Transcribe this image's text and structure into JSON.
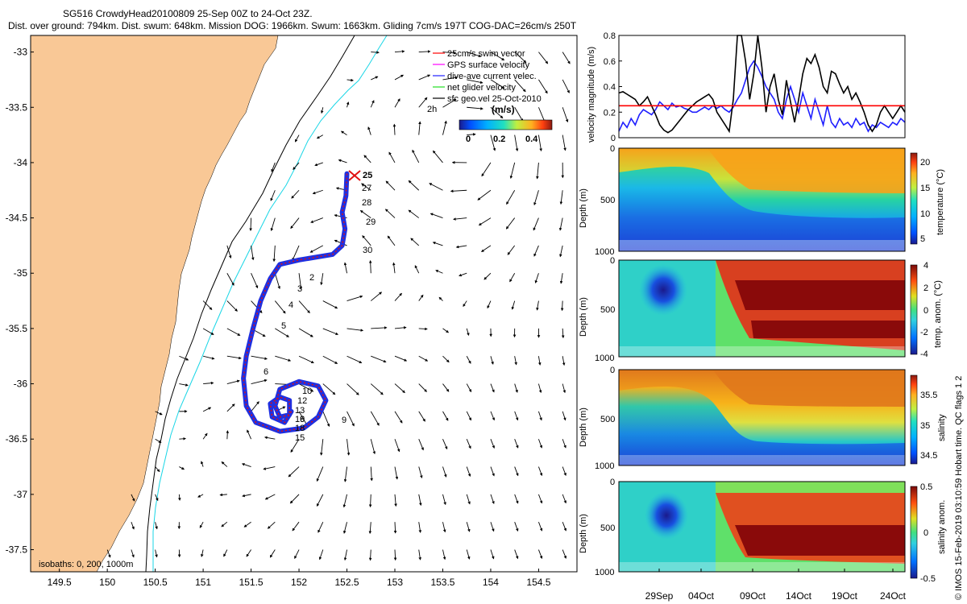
{
  "header": {
    "title_line1": "SG516 CrowdyHead20100809 25-Sep 00Z to 24-Oct 23Z.",
    "title_line2": "Dist. over ground: 794km. Dist. swum: 648km. Mission DOG: 1966km. Swum: 1663km. Gliding 7cm/s 197T COG-DAC=26cm/s 250T"
  },
  "credit": "© IMOS 15-Feb-2019 03:10:59 Hobart time. QC flags 1  2",
  "colors": {
    "land": "#f9c896",
    "track_blue": "#1f2fe0",
    "track_red": "#e01010",
    "isobath_cyan": "#19d6e6",
    "swim_red": "#ff0000",
    "gps_magenta": "#ff00ff",
    "dac_blue": "#2020ff",
    "net_green": "#22dd22",
    "sfc_black": "#000000"
  },
  "map": {
    "legend": {
      "items": [
        "25cm/s swim vector",
        "GPS surface velocity",
        "dive-ave current velec.",
        "net glider velocity",
        "sfc geo.vel 25-Oct-2010"
      ],
      "extra_label": "2h",
      "colorbar_title": "(m/s)",
      "colorbar_ticks": [
        "0",
        "0.2",
        "0.4"
      ]
    },
    "isobath_note": "isobaths: 0,  200, 1000m",
    "day_labels": [
      "25",
      "27",
      "28",
      "29",
      "30",
      "2",
      "3",
      "4",
      "5",
      "6",
      "9",
      "10",
      "12",
      "13",
      "15",
      "18",
      "19",
      "6"
    ]
  },
  "chart_data": [
    {
      "type": "map",
      "name": "glider-track-map",
      "xticks": [
        "149.5",
        "150",
        "150.5",
        "151",
        "151.5",
        "152",
        "152.5",
        "153",
        "153.5",
        "154",
        "154.5"
      ],
      "yticks": [
        "-33",
        "-33.5",
        "-34",
        "-34.5",
        "-35",
        "-35.5",
        "-36",
        "-36.5",
        "-37",
        "-37.5"
      ],
      "xlim": [
        149.2,
        154.9
      ],
      "ylim": [
        -37.7,
        -32.85
      ],
      "track": [
        [
          152.5,
          -34.1
        ],
        [
          152.49,
          -34.3
        ],
        [
          152.45,
          -34.45
        ],
        [
          152.48,
          -34.6
        ],
        [
          152.45,
          -34.75
        ],
        [
          152.35,
          -34.83
        ],
        [
          152.0,
          -34.88
        ],
        [
          151.8,
          -34.92
        ],
        [
          151.7,
          -35.05
        ],
        [
          151.6,
          -35.25
        ],
        [
          151.52,
          -35.5
        ],
        [
          151.45,
          -35.75
        ],
        [
          151.42,
          -35.95
        ],
        [
          151.45,
          -36.2
        ],
        [
          151.55,
          -36.35
        ],
        [
          151.8,
          -36.43
        ],
        [
          152.05,
          -36.4
        ],
        [
          152.2,
          -36.3
        ],
        [
          152.28,
          -36.15
        ],
        [
          152.2,
          -36.02
        ],
        [
          152.0,
          -35.98
        ],
        [
          151.8,
          -36.05
        ],
        [
          151.75,
          -36.2
        ],
        [
          151.8,
          -36.3
        ],
        [
          151.9,
          -36.28
        ],
        [
          151.9,
          -36.15
        ],
        [
          151.8,
          -36.12
        ],
        [
          151.7,
          -36.18
        ],
        [
          151.72,
          -36.3
        ],
        [
          151.85,
          -36.35
        ],
        [
          151.92,
          -36.25
        ]
      ]
    },
    {
      "type": "line",
      "name": "velocity-magnitude",
      "ylabel": "velocity magnitude (m/s)",
      "ylim": [
        0,
        0.8
      ],
      "yticks": [
        "0",
        "0.2",
        "0.4",
        "0.6",
        "0.8"
      ],
      "series": [
        {
          "color": "#22dd22",
          "values": [
            0.1,
            0.12,
            0.2,
            0.15,
            0.22,
            0.12,
            0.18,
            0.2,
            0.15,
            0.3,
            0.38,
            0.25,
            0.45,
            0.3,
            0.4,
            0.5,
            0.35,
            0.45,
            0.3,
            0.25,
            0.15,
            0.2,
            0.28,
            0.25,
            0.35,
            0.22,
            0.3,
            0.25,
            0.2,
            0.32,
            0.4,
            0.5,
            0.62,
            0.55,
            0.7,
            0.45,
            0.55,
            0.35,
            0.6,
            0.4,
            0.68,
            0.55,
            0.45,
            0.35,
            0.55,
            0.45,
            0.3,
            0.48,
            0.35,
            0.25,
            0.45,
            0.3,
            0.38,
            0.2,
            0.35,
            0.18,
            0.3,
            0.15,
            0.25,
            0.2,
            0.3,
            0.12,
            0.22,
            0.1,
            0.2,
            0.08,
            0.18,
            0.12,
            0.2,
            0.15,
            0.1
          ]
        },
        {
          "color": "#2020ff",
          "values": [
            0.05,
            0.12,
            0.08,
            0.15,
            0.1,
            0.18,
            0.22,
            0.2,
            0.18,
            0.22,
            0.28,
            0.25,
            0.22,
            0.27,
            0.24,
            0.25,
            0.23,
            0.22,
            0.2,
            0.2,
            0.22,
            0.24,
            0.22,
            0.25,
            0.23,
            0.25,
            0.22,
            0.2,
            0.24,
            0.3,
            0.35,
            0.45,
            0.55,
            0.6,
            0.55,
            0.48,
            0.4,
            0.35,
            0.3,
            0.2,
            0.15,
            0.3,
            0.4,
            0.3,
            0.2,
            0.35,
            0.25,
            0.15,
            0.3,
            0.2,
            0.1,
            0.25,
            0.12,
            0.08,
            0.15,
            0.1,
            0.12,
            0.08,
            0.15,
            0.1,
            0.12,
            0.05,
            0.1,
            0.08,
            0.12,
            0.1,
            0.08,
            0.12,
            0.1,
            0.15,
            0.12
          ]
        },
        {
          "color": "#000000",
          "values": [
            0.35,
            0.36,
            0.34,
            0.32,
            0.3,
            0.25,
            0.28,
            0.32,
            0.25,
            0.18,
            0.1,
            0.06,
            0.04,
            0.06,
            0.1,
            0.14,
            0.18,
            0.22,
            0.25,
            0.28,
            0.3,
            0.32,
            0.34,
            0.3,
            0.2,
            0.15,
            0.1,
            0.05,
            0.3,
            0.82,
            0.95,
            0.6,
            0.3,
            0.5,
            0.85,
            0.55,
            0.2,
            0.4,
            0.5,
            0.3,
            0.18,
            0.45,
            0.28,
            0.12,
            0.3,
            0.5,
            0.62,
            0.58,
            0.65,
            0.55,
            0.4,
            0.35,
            0.52,
            0.5,
            0.42,
            0.35,
            0.4,
            0.3,
            0.35,
            0.28,
            0.2,
            0.1,
            0.05,
            0.1,
            0.2,
            0.25,
            0.2,
            0.15,
            0.2,
            0.25,
            0.2
          ]
        },
        {
          "color": "#ff0000",
          "values": [
            0.25,
            0.25
          ]
        }
      ]
    },
    {
      "type": "heatmap",
      "name": "temperature-section",
      "ylabel": "Depth (m)",
      "cbar_label": "temperature (°C)",
      "cbar_ticks": [
        "20",
        "15",
        "10",
        "5"
      ],
      "ylim": [
        1000,
        0
      ],
      "yticks": [
        "0",
        "500",
        "1000"
      ]
    },
    {
      "type": "heatmap",
      "name": "temperature-anomaly-section",
      "ylabel": "Depth (m)",
      "cbar_label": "temp. anom. (°C)",
      "cbar_ticks": [
        "4",
        "2",
        "0",
        "-2",
        "-4"
      ],
      "ylim": [
        1000,
        0
      ],
      "yticks": [
        "0",
        "500",
        "1000"
      ]
    },
    {
      "type": "heatmap",
      "name": "salinity-section",
      "ylabel": "Depth (m)",
      "cbar_label": "salinity",
      "cbar_ticks": [
        "35.5",
        "35",
        "34.5"
      ],
      "ylim": [
        1000,
        0
      ],
      "yticks": [
        "0",
        "500",
        "1000"
      ]
    },
    {
      "type": "heatmap",
      "name": "salinity-anomaly-section",
      "ylabel": "Depth (m)",
      "cbar_label": "salinity anom.",
      "cbar_ticks": [
        "0.5",
        "0",
        "-0.5"
      ],
      "ylim": [
        1000,
        0
      ],
      "yticks": [
        "0",
        "500",
        "1000"
      ],
      "xticks": [
        "29Sep",
        "04Oct",
        "09Oct",
        "14Oct",
        "19Oct",
        "24Oct"
      ]
    }
  ]
}
